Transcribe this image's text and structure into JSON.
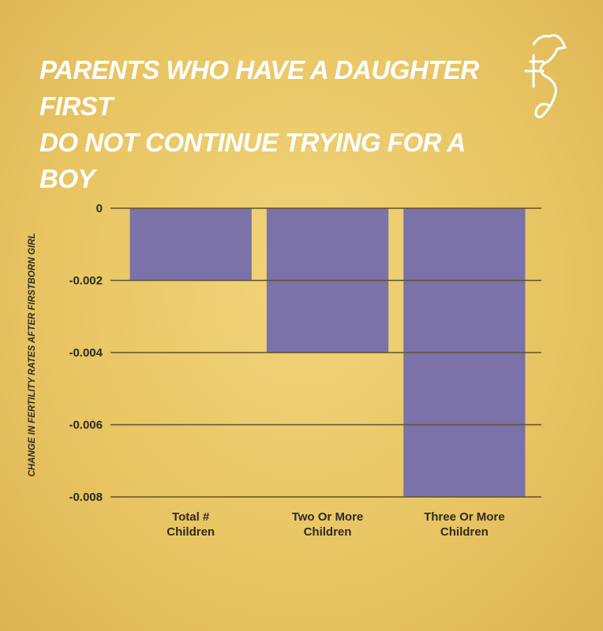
{
  "chart_data": {
    "type": "bar",
    "title": "PARENTS WHO HAVE A DAUGHTER FIRST\nDO NOT CONTINUE TRYING FOR A BOY",
    "y_label": "CHANGE IN FERTILITY RATES AFTER FIRSTBORN GIRL",
    "categories": [
      "Total #\nChildren",
      "Two Or More\nChildren",
      "Three Or More\nChildren"
    ],
    "values": [
      -0.002,
      -0.004,
      -0.008
    ],
    "color": "#7a72a8",
    "ylim": [
      -0.008,
      0
    ],
    "yticks": [
      0,
      -0.002,
      -0.004,
      -0.006,
      -0.008
    ],
    "grid": true
  }
}
